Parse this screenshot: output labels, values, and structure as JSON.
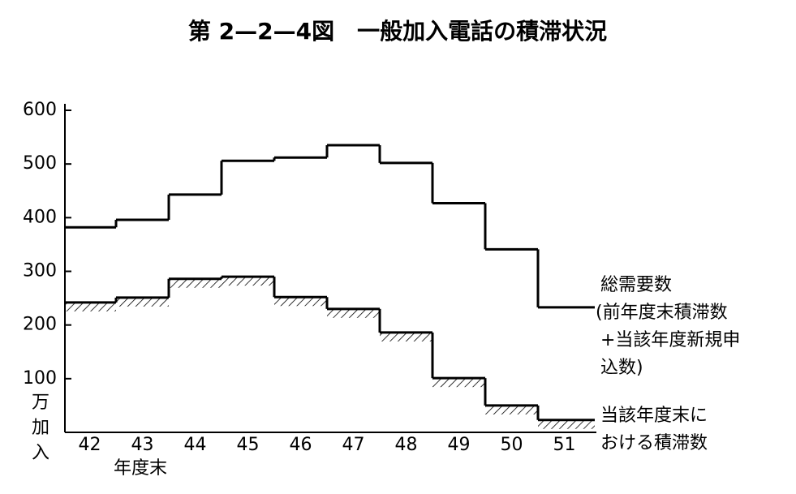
{
  "chart_data": {
    "type": "step",
    "title": "第 2—2—4図　一般加入電話の積滞状況",
    "y_label": "万加入",
    "x_label": "年度末",
    "categories": [
      "42",
      "43",
      "44",
      "45",
      "46",
      "47",
      "48",
      "49",
      "50",
      "51"
    ],
    "series": [
      {
        "name": "総需要数",
        "label_lines": [
          "(前年度末積滞数",
          "+当該年度新規申",
          "込数)"
        ],
        "color": "#000000",
        "hatched": false,
        "values": [
          382,
          396,
          443,
          506,
          512,
          535,
          502,
          427,
          341,
          233
        ]
      },
      {
        "name": "当該年度末に",
        "label_lines": [
          "おける積滞数"
        ],
        "color": "#000000",
        "hatched": true,
        "values": [
          242,
          251,
          286,
          290,
          252,
          230,
          186,
          101,
          50,
          23
        ]
      }
    ],
    "ylim": [
      0,
      600
    ],
    "yticks": [
      100,
      200,
      300,
      400,
      500,
      600
    ]
  }
}
